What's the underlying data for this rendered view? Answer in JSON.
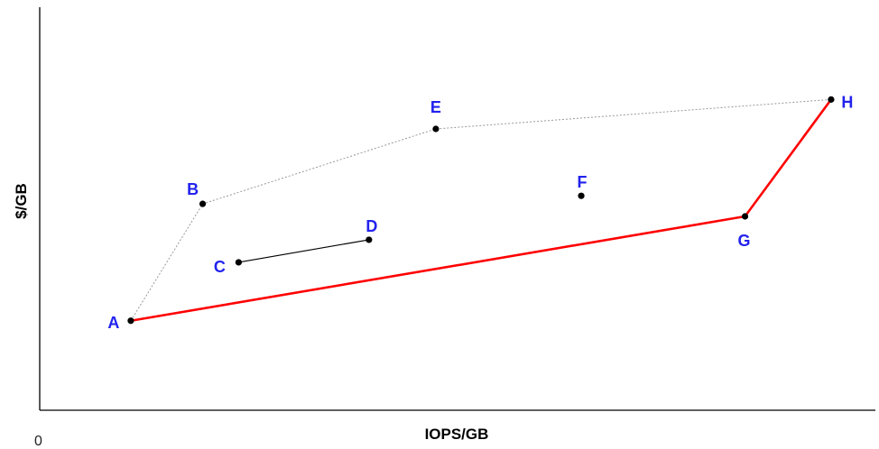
{
  "chart_data": {
    "type": "scatter",
    "title": "",
    "xlabel": "IOPS/GB",
    "ylabel": "$/GB",
    "origin_label": "0",
    "xlim": [
      0,
      100
    ],
    "ylim": [
      0,
      100
    ],
    "grid": false,
    "points": [
      {
        "label": "A",
        "x": 10.9,
        "y": 22.2
      },
      {
        "label": "B",
        "x": 19.5,
        "y": 51.2
      },
      {
        "label": "C",
        "x": 23.8,
        "y": 36.7
      },
      {
        "label": "D",
        "x": 39.4,
        "y": 42.3
      },
      {
        "label": "E",
        "x": 47.4,
        "y": 69.8
      },
      {
        "label": "F",
        "x": 64.8,
        "y": 53.2
      },
      {
        "label": "G",
        "x": 84.4,
        "y": 48.1
      },
      {
        "label": "H",
        "x": 94.7,
        "y": 77.1
      }
    ],
    "segments": [
      {
        "points": [
          "A",
          "B",
          "E",
          "H"
        ],
        "style": "dotted",
        "color": "#999999"
      },
      {
        "points": [
          "C",
          "D"
        ],
        "style": "solid",
        "color": "#000000"
      },
      {
        "points": [
          "A",
          "G",
          "H"
        ],
        "style": "solid",
        "color": "#ff0000"
      }
    ],
    "colors": {
      "label": "#2222ee",
      "point": "#000000",
      "axis": "#000000"
    }
  }
}
